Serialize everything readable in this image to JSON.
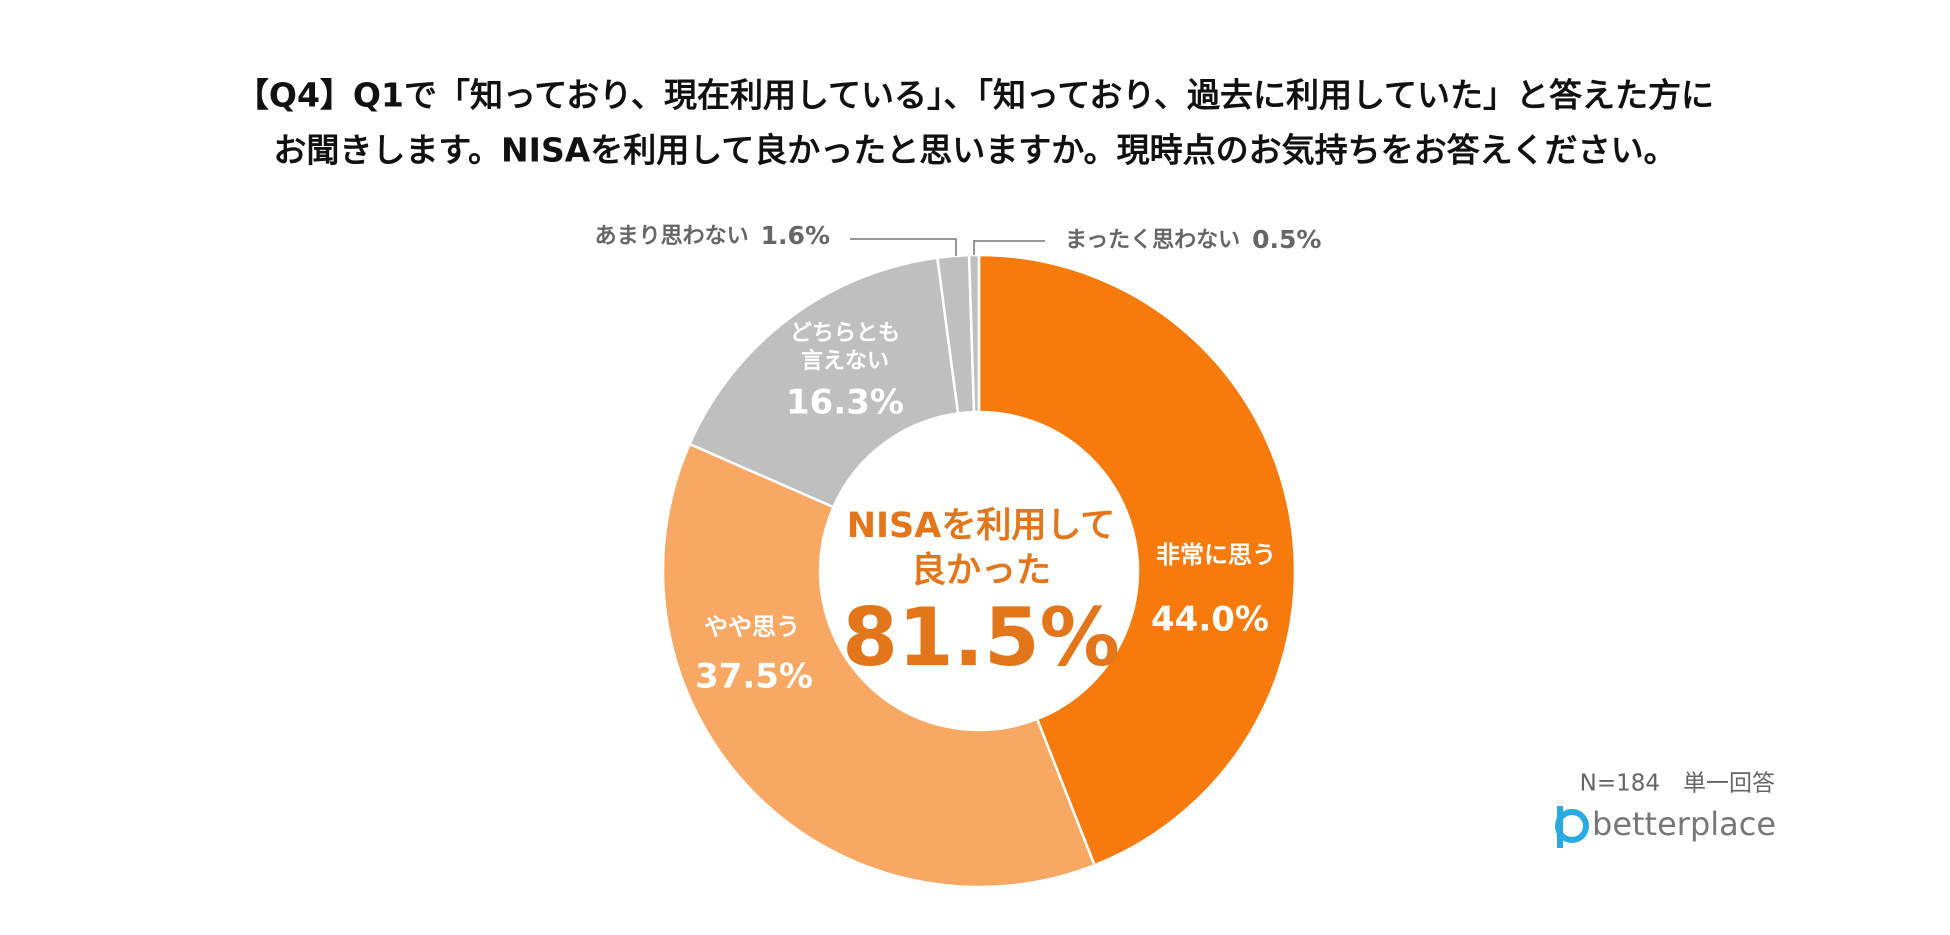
{
  "chart_data": {
    "type": "donut",
    "title": [
      "【Q4】Q1で「知っており、現在利用している」、「知っており、過去に利用していた」と答えた方に",
      "お聞きします。NISAを利用して良かったと思いますか。現時点のお気持ちをお答えください。"
    ],
    "categories": [
      "非常に思う",
      "やや思う",
      "どちらとも言えない",
      "あまり思わない",
      "まったく思わない"
    ],
    "values": [
      44.0,
      37.5,
      16.3,
      1.6,
      0.5
    ],
    "value_labels": [
      "44.0%",
      "37.5%",
      "16.3%",
      "1.6%",
      "0.5%"
    ],
    "colors": [
      "#F77A0C",
      "#F8A862",
      "#BFBFBF",
      "#BFBFBF",
      "#BFBFBF"
    ],
    "center_label": [
      "NISAを利用して",
      "良かった"
    ],
    "center_value": 81.5,
    "center_value_label": "81.5%",
    "note": "N=184　単一回答",
    "logo": "betterplace"
  }
}
